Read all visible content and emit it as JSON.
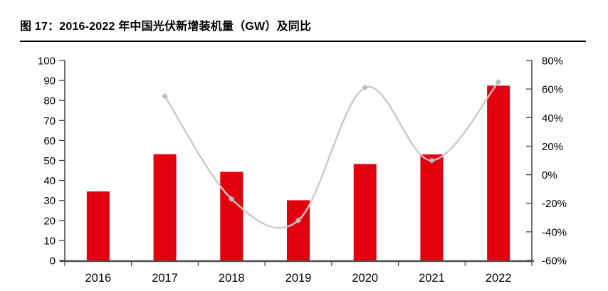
{
  "figure": {
    "title": "图  17：2016-2022 年中国光伏新增装机量（GW）及同比"
  },
  "chart_data": {
    "type": "bar",
    "subtype": "bar-with-smooth-line",
    "title": "图 17：2016-2022 年中国光伏新增装机量（GW）及同比",
    "categories": [
      "2016",
      "2017",
      "2018",
      "2019",
      "2020",
      "2021",
      "2022"
    ],
    "series": [
      {
        "name": "新增装机量（GW）",
        "type": "bar",
        "axis": "left",
        "values": [
          34.5,
          53.1,
          44.3,
          30.1,
          48.2,
          53.0,
          87.4
        ]
      },
      {
        "name": "同比",
        "type": "smooth-line",
        "axis": "right",
        "values": [
          null,
          55,
          -17,
          -32,
          61,
          10,
          65
        ],
        "unit": "%"
      }
    ],
    "left_axis": {
      "min": 0,
      "max": 100,
      "step": 10,
      "tick_labels": [
        "0",
        "10",
        "20",
        "30",
        "40",
        "50",
        "60",
        "70",
        "80",
        "90",
        "100"
      ]
    },
    "right_axis": {
      "min": -60,
      "max": 80,
      "step": 20,
      "tick_labels": [
        "-60%",
        "-40%",
        "-20%",
        "0%",
        "20%",
        "40%",
        "60%",
        "80%"
      ]
    },
    "grid": "off",
    "legend": "none",
    "colors": {
      "bar": "#E2000F",
      "line": "#C9C9C9",
      "marker": "#BDBDBD",
      "axis": "#404040",
      "bottom_axis": "#4D4D4D",
      "text": "#000000"
    }
  }
}
